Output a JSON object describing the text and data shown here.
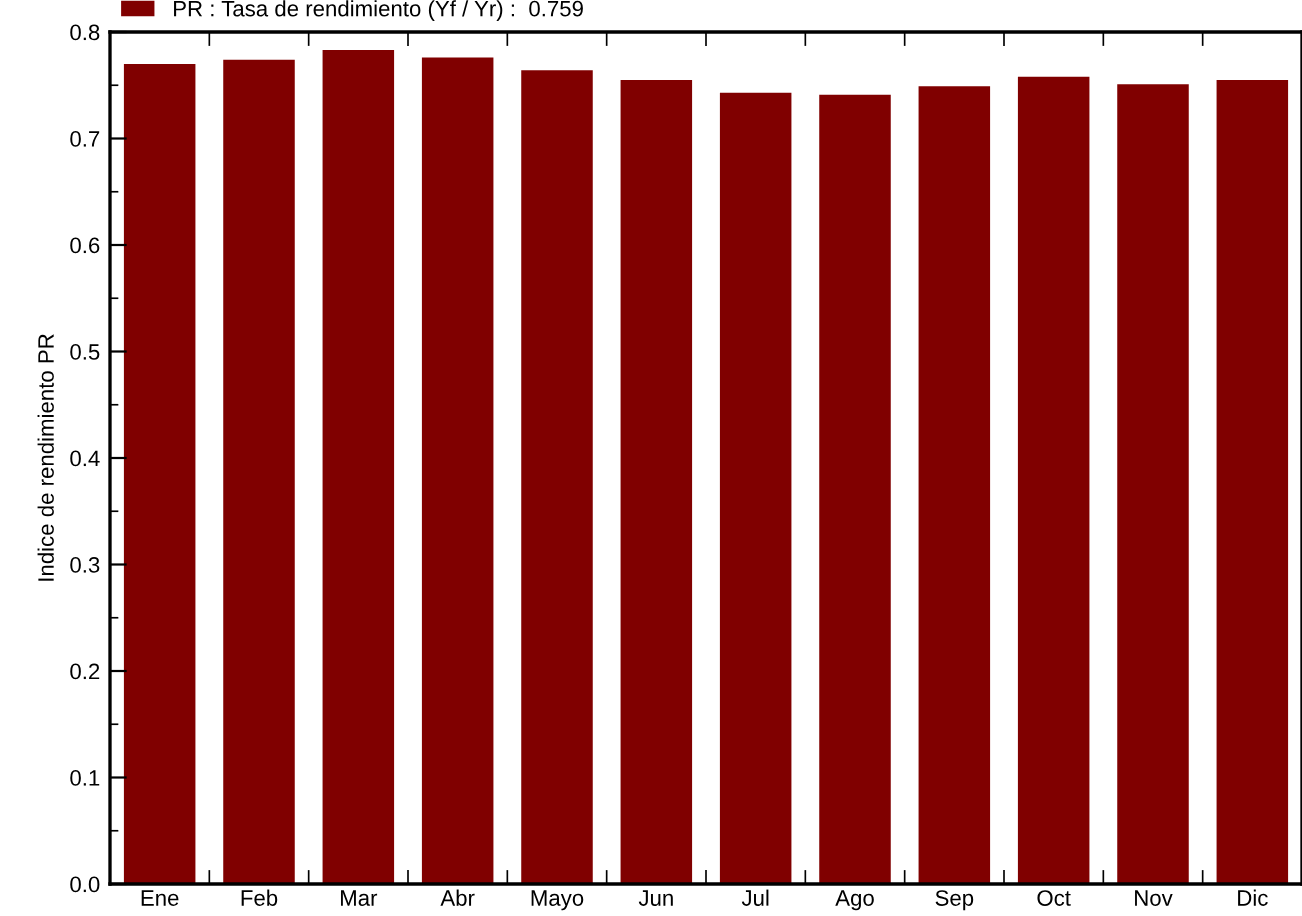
{
  "chart_data": {
    "type": "bar",
    "ylabel": "Indice de rendimiento PR",
    "categories": [
      "Ene",
      "Feb",
      "Mar",
      "Abr",
      "Mayo",
      "Jun",
      "Jul",
      "Ago",
      "Sep",
      "Oct",
      "Nov",
      "Dic"
    ],
    "series": [
      {
        "name": "PR : Tasa de rendimiento (Yf / Yr) :  0.759",
        "color": "#800000",
        "values": [
          0.77,
          0.774,
          0.783,
          0.776,
          0.764,
          0.755,
          0.743,
          0.741,
          0.749,
          0.758,
          0.751,
          0.755
        ]
      }
    ],
    "ylim": [
      0,
      0.8
    ],
    "yticks": [
      {
        "value": 0,
        "label": "0.0"
      },
      0.1,
      0.2,
      0.3,
      0.4,
      0.5,
      0.6,
      0.7,
      0.8
    ],
    "grid": false,
    "legend": "top left"
  }
}
